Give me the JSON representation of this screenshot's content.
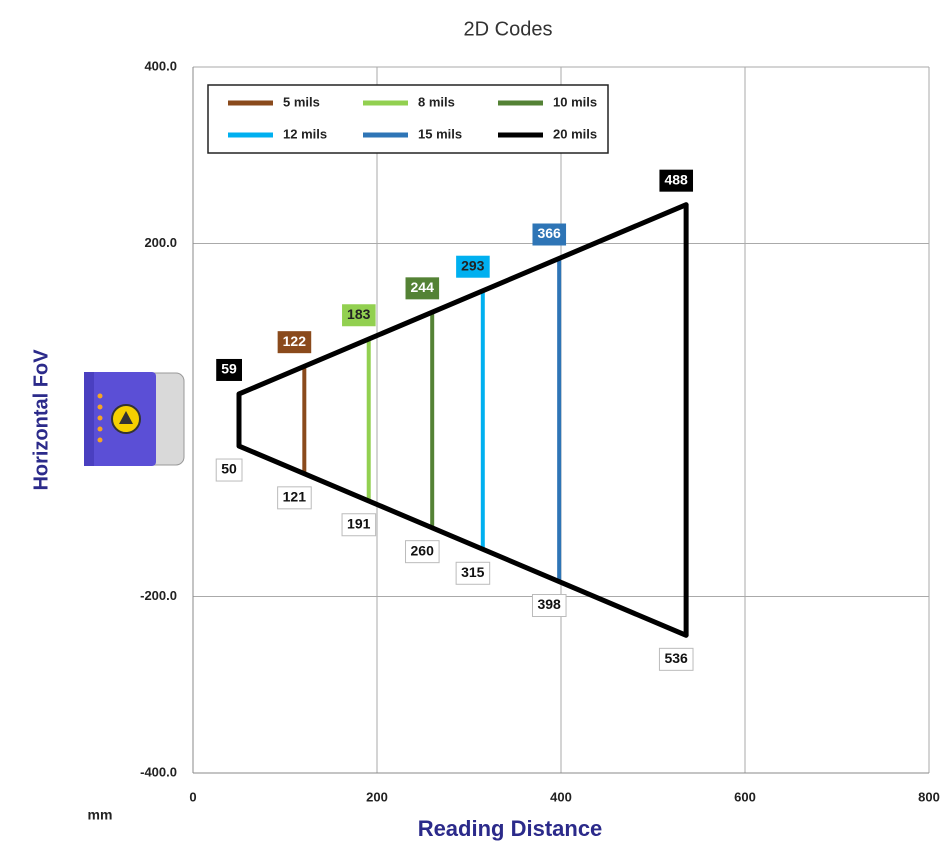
{
  "chart_data": {
    "type": "fov",
    "title": "2D Codes",
    "x_label": "Reading Distance",
    "y_label": "Horizontal FoV",
    "unit": "mm",
    "xlim": [
      0,
      800
    ],
    "xticks": [
      0,
      200,
      400,
      600,
      800
    ],
    "ylim": [
      -400,
      400
    ],
    "yticks": [
      {
        "value": 400,
        "label": "400.0"
      },
      {
        "value": 200,
        "label": "200.0"
      },
      {
        "value": -200,
        "label": "-200.0"
      },
      {
        "value": -400,
        "label": "-400.0"
      }
    ],
    "grid": true,
    "legend": "upper left",
    "series": [
      {
        "name": "5 mils",
        "color": "#8a4a1c",
        "x": [
          121
        ],
        "values": [
          122
        ]
      },
      {
        "name": "8 mils",
        "color": "#92d050",
        "x": [
          191
        ],
        "values": [
          183
        ]
      },
      {
        "name": "10 mils",
        "color": "#548235",
        "x": [
          260
        ],
        "values": [
          244
        ]
      },
      {
        "name": "12 mils",
        "color": "#00b0f0",
        "x": [
          315
        ],
        "values": [
          293
        ]
      },
      {
        "name": "15 mils",
        "color": "#2e75b6",
        "x": [
          398
        ],
        "values": [
          366
        ]
      },
      {
        "name": "20 mils",
        "color": "#000000",
        "x": [
          50,
          536
        ],
        "values": [
          59,
          488
        ]
      }
    ]
  }
}
